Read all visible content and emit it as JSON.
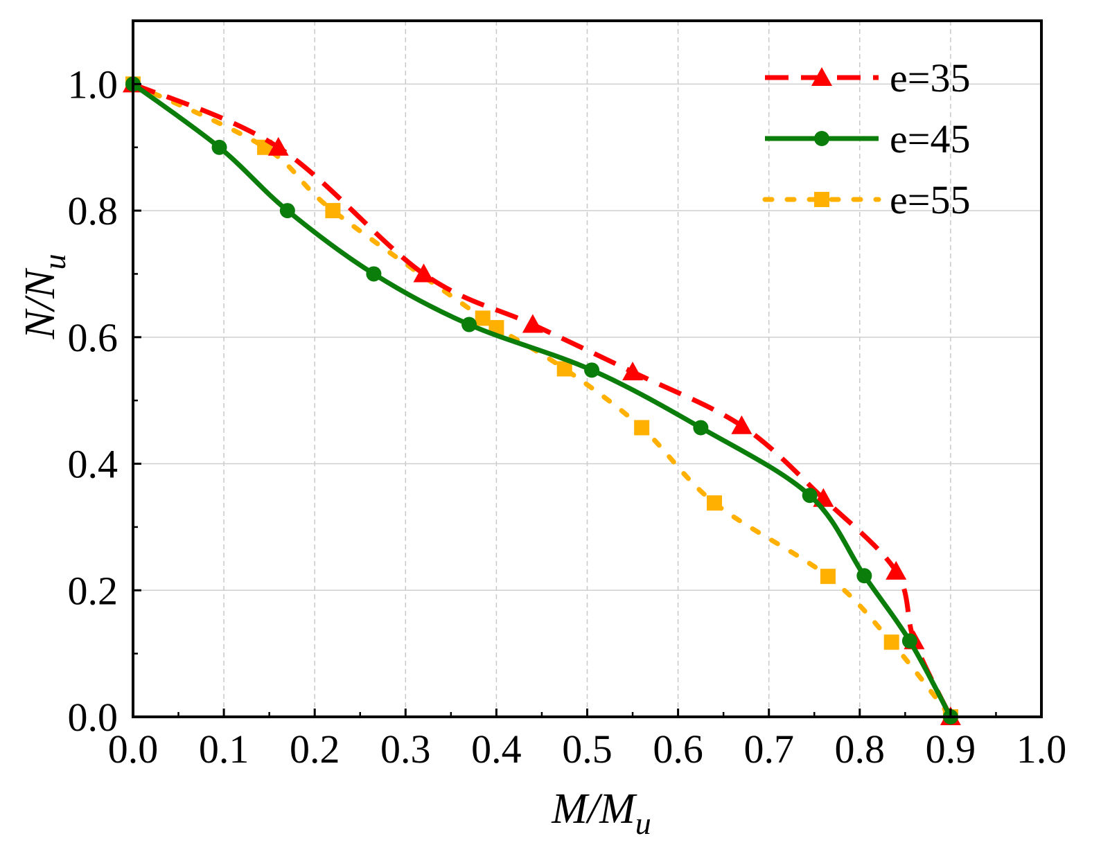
{
  "chart_data": {
    "type": "line",
    "title": "",
    "xlabel": {
      "main": "M/M",
      "sub": "u"
    },
    "ylabel": {
      "main": "N/N",
      "sub": "u"
    },
    "xlim": [
      0.0,
      1.0
    ],
    "ylim": [
      0.0,
      1.1
    ],
    "xticks": [
      0.0,
      0.1,
      0.2,
      0.3,
      0.4,
      0.5,
      0.6,
      0.7,
      0.8,
      0.9,
      1.0
    ],
    "xtick_labels": [
      "0.0",
      "0.1",
      "0.2",
      "0.3",
      "0.4",
      "0.5",
      "0.6",
      "0.7",
      "0.8",
      "0.9",
      "1.0"
    ],
    "yticks": [
      0.0,
      0.2,
      0.4,
      0.6,
      0.8,
      1.0
    ],
    "ytick_labels": [
      "0.0",
      "0.2",
      "0.4",
      "0.6",
      "0.8",
      "1.0"
    ],
    "grid": true,
    "legend_position": "top-right",
    "series": [
      {
        "name": "e=35",
        "color": "#ff0000",
        "line_style": "dashed",
        "marker": "triangle",
        "x": [
          0.0,
          0.16,
          0.32,
          0.44,
          0.55,
          0.67,
          0.76,
          0.84,
          0.86,
          0.9
        ],
        "y": [
          1.0,
          0.9,
          0.7,
          0.62,
          0.545,
          0.46,
          0.345,
          0.23,
          0.12,
          0.0
        ]
      },
      {
        "name": "e=45",
        "color": "#0a7d0a",
        "line_style": "solid",
        "marker": "circle",
        "x": [
          0.0,
          0.095,
          0.17,
          0.265,
          0.37,
          0.505,
          0.625,
          0.745,
          0.805,
          0.855,
          0.9
        ],
        "y": [
          1.0,
          0.9,
          0.8,
          0.7,
          0.62,
          0.548,
          0.457,
          0.35,
          0.223,
          0.12,
          0.0
        ]
      },
      {
        "name": "e=55",
        "color": "#ffb000",
        "line_style": "dotted",
        "marker": "square",
        "x": [
          0.0,
          0.145,
          0.22,
          0.385,
          0.4,
          0.475,
          0.56,
          0.64,
          0.765,
          0.835,
          0.9
        ],
        "y": [
          1.0,
          0.9,
          0.8,
          0.63,
          0.615,
          0.55,
          0.457,
          0.338,
          0.222,
          0.118,
          0.0
        ]
      }
    ]
  }
}
